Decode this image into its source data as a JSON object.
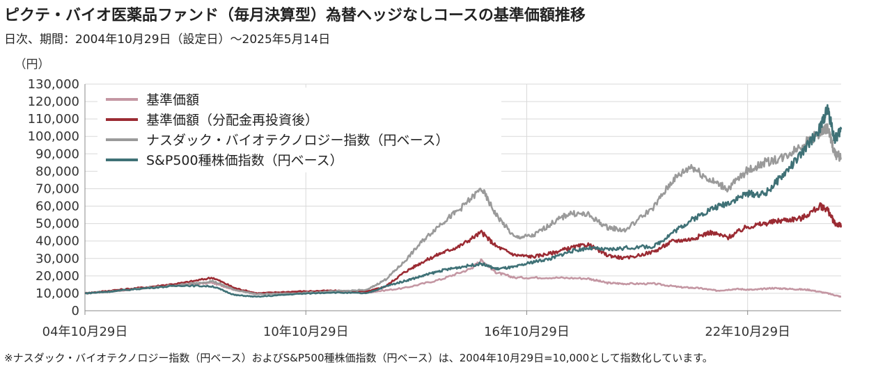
{
  "title": "ピクテ・バイオ医薬品ファンド（毎月決算型）為替ヘッジなしコースの基準価額推移",
  "subtitle": "日次、期間：2004年10月29日（設定日）～2025年5月14日",
  "footnote": "※ナスダック・バイオテクノロジー指数（円ベース）およびS&P500種株価指数（円ベース）は、2004年10月29日=10,000として指数化しています。",
  "chart_data": {
    "type": "line",
    "ylabel": "（円）",
    "ylim": [
      0,
      130000
    ],
    "yticks": [
      0,
      10000,
      20000,
      30000,
      40000,
      50000,
      60000,
      70000,
      80000,
      90000,
      100000,
      110000,
      120000,
      130000
    ],
    "ytick_labels": [
      "0",
      "10,000",
      "20,000",
      "30,000",
      "40,000",
      "50,000",
      "60,000",
      "70,000",
      "80,000",
      "90,000",
      "100,000",
      "110,000",
      "120,000",
      "130,000"
    ],
    "xlim": [
      2004.83,
      2025.37
    ],
    "xticks": [
      2004.83,
      2010.83,
      2016.83,
      2022.83
    ],
    "xtick_labels": [
      "04年10月29日",
      "10年10月29日",
      "16年10月29日",
      "22年10月29日"
    ],
    "grid": true,
    "legend_position": "top-left",
    "series": [
      {
        "name": "基準価額",
        "color": "#c497a3",
        "x": [
          2004.83,
          2005.5,
          2006.5,
          2007.5,
          2008.3,
          2008.9,
          2009.5,
          2010.5,
          2011.5,
          2012.5,
          2013.5,
          2014.5,
          2015.3,
          2015.6,
          2016.0,
          2016.5,
          2017.5,
          2018.5,
          2019.0,
          2019.5,
          2020.3,
          2021.0,
          2021.5,
          2022.0,
          2022.5,
          2023.0,
          2023.5,
          2024.0,
          2024.5,
          2025.0,
          2025.37
        ],
        "y": [
          10000,
          11000,
          13000,
          15000,
          16000,
          12000,
          9500,
          10500,
          11000,
          10500,
          13000,
          18000,
          24000,
          29000,
          22000,
          19000,
          19000,
          18500,
          16000,
          15500,
          15500,
          13500,
          13000,
          11500,
          12500,
          12000,
          13000,
          12500,
          12000,
          10000,
          8000
        ]
      },
      {
        "name": "基準価額（分配金再投資後）",
        "color": "#9b2b33",
        "x": [
          2004.83,
          2005.5,
          2006.5,
          2007.5,
          2008.3,
          2008.9,
          2009.5,
          2010.5,
          2011.5,
          2012.5,
          2013.0,
          2013.5,
          2014.0,
          2014.5,
          2015.0,
          2015.6,
          2016.0,
          2016.5,
          2017.0,
          2017.5,
          2018.0,
          2018.5,
          2019.0,
          2019.5,
          2020.3,
          2020.8,
          2021.3,
          2021.8,
          2022.3,
          2022.8,
          2023.3,
          2023.8,
          2024.3,
          2024.8,
          2025.0,
          2025.2,
          2025.37
        ],
        "y": [
          10000,
          11500,
          13500,
          16000,
          19000,
          13000,
          10000,
          11000,
          11500,
          11000,
          14000,
          22000,
          28000,
          33000,
          37000,
          45000,
          37000,
          32000,
          31000,
          33000,
          36000,
          38000,
          32000,
          30000,
          34000,
          40000,
          41000,
          45000,
          42000,
          48000,
          50000,
          52000,
          53000,
          60000,
          58000,
          50000,
          49000
        ]
      },
      {
        "name": "ナスダック・バイオテクノロジー指数（円ベース）",
        "color": "#9a9a9a",
        "x": [
          2004.83,
          2005.5,
          2006.5,
          2007.5,
          2008.3,
          2008.9,
          2009.5,
          2010.5,
          2011.5,
          2012.5,
          2013.0,
          2013.5,
          2014.0,
          2014.5,
          2015.0,
          2015.6,
          2016.0,
          2016.5,
          2017.0,
          2017.5,
          2018.0,
          2018.5,
          2019.0,
          2019.5,
          2020.3,
          2020.8,
          2021.3,
          2021.8,
          2022.3,
          2022.8,
          2023.3,
          2023.8,
          2024.3,
          2024.8,
          2025.0,
          2025.2,
          2025.37
        ],
        "y": [
          10000,
          11000,
          13000,
          15000,
          17000,
          12000,
          9500,
          10000,
          11000,
          12000,
          18000,
          28000,
          40000,
          50000,
          58000,
          70000,
          55000,
          42000,
          43000,
          50000,
          56000,
          55000,
          48000,
          46000,
          60000,
          75000,
          83000,
          75000,
          70000,
          80000,
          85000,
          88000,
          95000,
          102000,
          105000,
          90000,
          88000
        ]
      },
      {
        "name": "S&P500種株価指数（円ベース）",
        "color": "#3f7176",
        "x": [
          2004.83,
          2005.5,
          2006.5,
          2007.5,
          2008.3,
          2008.9,
          2009.5,
          2010.5,
          2011.5,
          2012.5,
          2013.0,
          2013.5,
          2014.0,
          2014.5,
          2015.0,
          2015.6,
          2016.0,
          2016.5,
          2017.0,
          2017.5,
          2018.0,
          2018.5,
          2019.0,
          2019.5,
          2020.3,
          2020.8,
          2021.3,
          2021.8,
          2022.3,
          2022.8,
          2023.3,
          2023.8,
          2024.3,
          2024.8,
          2025.0,
          2025.2,
          2025.37
        ],
        "y": [
          10000,
          11000,
          13000,
          14500,
          14000,
          9000,
          8000,
          9500,
          10500,
          10000,
          14000,
          17000,
          20000,
          23000,
          25000,
          27000,
          24000,
          25000,
          28000,
          30000,
          34000,
          36000,
          35000,
          36000,
          37000,
          45000,
          52000,
          58000,
          62000,
          67000,
          67000,
          78000,
          90000,
          105000,
          116000,
          98000,
          104000
        ]
      }
    ]
  }
}
